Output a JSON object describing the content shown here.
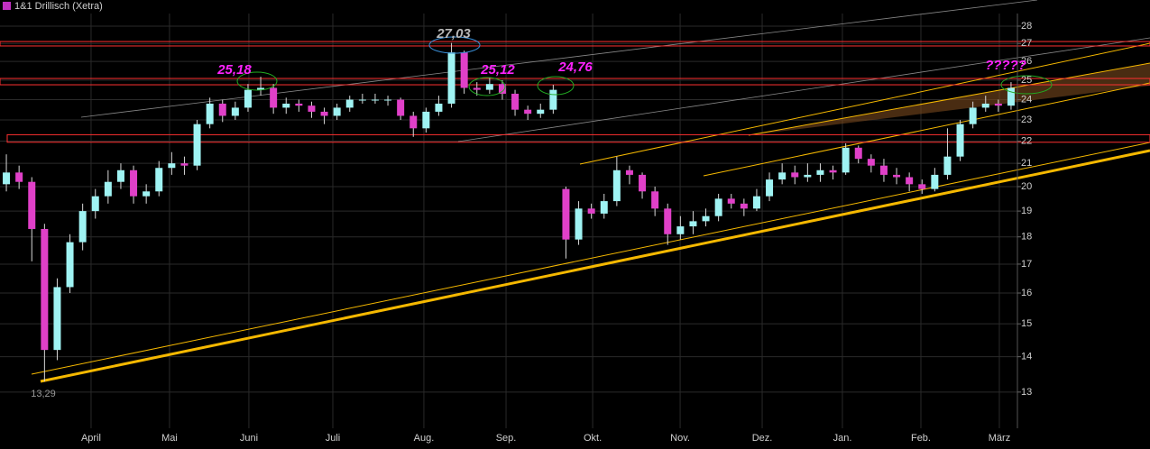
{
  "chart_data": {
    "type": "candlestick",
    "name": "1&1 Drillisch (Xetra)",
    "legend_color": "#c030c0",
    "up_color": "#9ff3f3",
    "down_color": "#e040c8",
    "wick_color": "#d8d8d8",
    "log_scale": true,
    "grid": true,
    "xlim": [
      0,
      80
    ],
    "ylim": [
      12.05,
      28.75
    ],
    "yticks": [
      13,
      14,
      15,
      16,
      17,
      18,
      19,
      20,
      21,
      22,
      23,
      24,
      25,
      26,
      27,
      28
    ],
    "xticks": [
      {
        "value": 7.16,
        "label": "April"
      },
      {
        "value": 13.33,
        "label": "Mai"
      },
      {
        "value": 19.57,
        "label": "Juni"
      },
      {
        "value": 26.17,
        "label": "Juli"
      },
      {
        "value": 33.33,
        "label": "Aug."
      },
      {
        "value": 39.79,
        "label": "Sep."
      },
      {
        "value": 46.6,
        "label": "Okt."
      },
      {
        "value": 53.48,
        "label": "Nov."
      },
      {
        "value": 59.93,
        "label": "Dez."
      },
      {
        "value": 66.24,
        "label": "Jan."
      },
      {
        "value": 72.41,
        "label": "Feb."
      },
      {
        "value": 78.58,
        "label": "März"
      }
    ],
    "open": [
      20.1,
      20.6,
      20.2,
      18.3,
      14.2,
      16.2,
      17.8,
      19.0,
      19.6,
      20.2,
      20.7,
      19.6,
      19.8,
      20.8,
      21.0,
      20.9,
      22.8,
      23.8,
      23.2,
      23.6,
      24.5,
      24.6,
      23.6,
      23.8,
      23.7,
      23.4,
      23.2,
      23.6,
      24.0,
      24.0,
      24.0,
      24.0,
      23.2,
      22.6,
      23.4,
      23.8,
      26.5,
      24.6,
      24.5,
      24.8,
      24.3,
      23.5,
      23.3,
      23.5,
      19.9,
      17.9,
      19.1,
      18.9,
      19.4,
      20.7,
      20.5,
      19.8,
      19.1,
      18.1,
      18.4,
      18.6,
      18.8,
      19.5,
      19.3,
      19.1,
      19.6,
      20.3,
      20.6,
      20.4,
      20.5,
      20.7,
      20.6,
      21.7,
      21.2,
      20.9,
      20.5,
      20.4,
      20.1,
      19.9,
      20.5,
      21.3,
      22.8,
      23.6,
      23.8,
      23.7
    ],
    "high": [
      21.4,
      20.9,
      20.4,
      18.5,
      16.5,
      18.1,
      19.3,
      19.9,
      20.7,
      21.0,
      20.9,
      20.1,
      21.1,
      21.5,
      21.3,
      23.0,
      24.1,
      24.0,
      23.9,
      24.8,
      25.18,
      24.8,
      24.1,
      24.0,
      23.9,
      23.6,
      23.8,
      24.2,
      24.3,
      24.3,
      24.2,
      24.1,
      23.4,
      23.6,
      24.2,
      27.03,
      26.6,
      24.9,
      25.12,
      25.0,
      24.5,
      23.7,
      23.8,
      24.76,
      20.0,
      19.4,
      19.3,
      19.7,
      21.3,
      20.9,
      20.6,
      20.0,
      19.3,
      18.8,
      19.0,
      19.1,
      19.7,
      19.7,
      19.5,
      19.9,
      20.6,
      21.0,
      20.9,
      21.0,
      21.0,
      20.9,
      21.9,
      21.8,
      21.4,
      21.2,
      20.8,
      20.6,
      20.3,
      20.8,
      22.6,
      23.0,
      23.9,
      24.2,
      24.0,
      24.9
    ],
    "low": [
      19.8,
      19.9,
      17.1,
      13.29,
      13.9,
      16.0,
      17.5,
      18.7,
      19.3,
      19.9,
      19.3,
      19.3,
      19.6,
      20.5,
      20.5,
      20.7,
      22.6,
      22.9,
      23.0,
      23.4,
      24.2,
      23.3,
      23.3,
      23.4,
      23.1,
      22.8,
      23.0,
      23.4,
      23.8,
      23.8,
      23.7,
      23.0,
      22.2,
      22.4,
      23.2,
      23.6,
      24.3,
      24.2,
      24.3,
      24.0,
      23.2,
      23.0,
      23.1,
      23.3,
      17.2,
      17.7,
      18.7,
      18.7,
      19.2,
      20.1,
      19.5,
      18.8,
      17.7,
      17.9,
      18.1,
      18.4,
      18.6,
      19.1,
      18.8,
      19.0,
      19.4,
      20.1,
      20.1,
      20.2,
      20.2,
      20.3,
      20.5,
      21.0,
      20.6,
      20.2,
      20.1,
      19.8,
      19.7,
      19.8,
      20.3,
      21.1,
      22.6,
      23.4,
      23.4,
      23.5
    ],
    "close": [
      20.6,
      20.2,
      18.3,
      14.2,
      16.2,
      17.8,
      19.0,
      19.6,
      20.2,
      20.7,
      19.6,
      19.8,
      20.8,
      21.0,
      20.9,
      22.8,
      23.8,
      23.2,
      23.6,
      24.5,
      24.6,
      23.6,
      23.8,
      23.7,
      23.4,
      23.2,
      23.6,
      24.0,
      24.0,
      24.0,
      24.0,
      23.2,
      22.6,
      23.4,
      23.8,
      26.5,
      24.6,
      24.5,
      24.8,
      24.3,
      23.5,
      23.3,
      23.5,
      24.5,
      17.9,
      19.1,
      18.9,
      19.4,
      20.7,
      20.5,
      19.8,
      19.1,
      18.1,
      18.4,
      18.6,
      18.8,
      19.5,
      19.3,
      19.1,
      19.6,
      20.3,
      20.6,
      20.4,
      20.5,
      20.7,
      20.6,
      21.7,
      21.2,
      20.9,
      20.5,
      20.4,
      20.1,
      19.9,
      20.5,
      21.3,
      22.8,
      23.6,
      23.8,
      23.7,
      24.6
    ],
    "zones": [
      [
        26.86,
        27.11
      ],
      [
        24.76,
        25.09
      ],
      [
        21.95,
        22.3
      ]
    ],
    "zone_color": "#ff3030",
    "annotations": [
      "25,18",
      "27,03",
      "25,12",
      "24,76",
      "?????",
      "13,29"
    ]
  }
}
